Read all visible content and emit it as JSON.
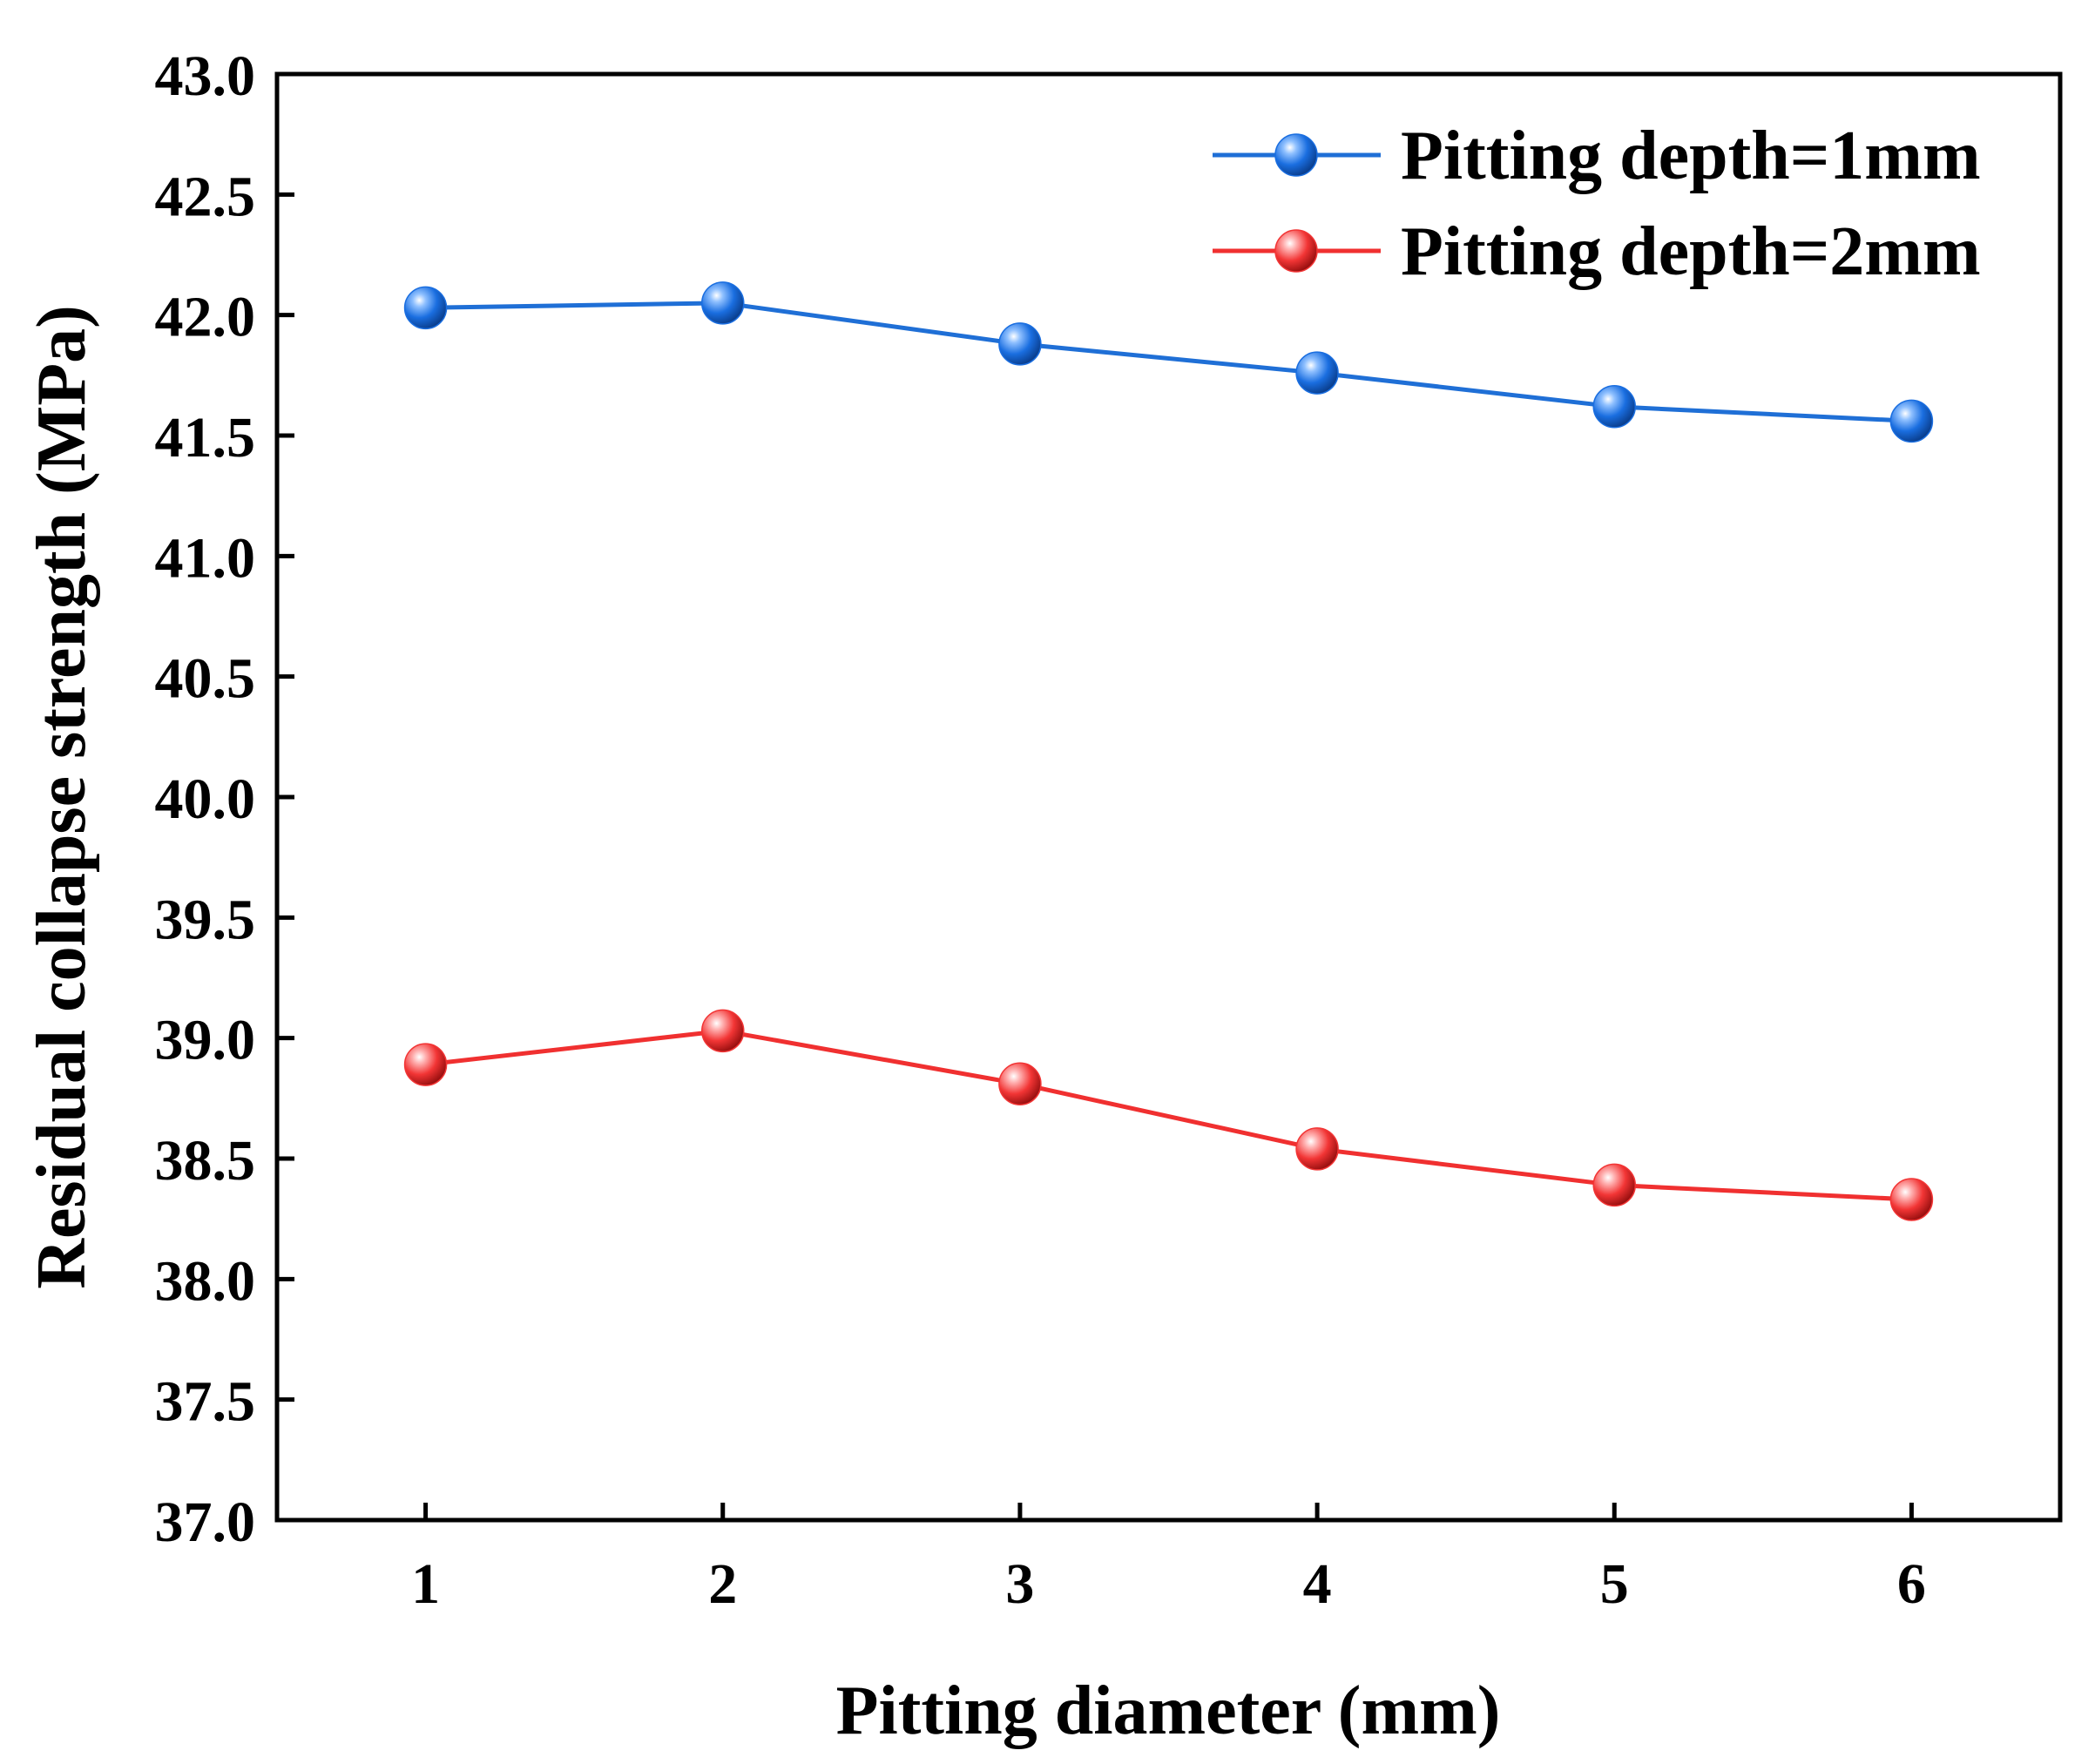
{
  "chart_data": {
    "type": "line",
    "title": "",
    "xlabel": "Pitting diameter (mm)",
    "ylabel": "Residual collapse strength (MPa)",
    "x": [
      1,
      2,
      3,
      4,
      5,
      6
    ],
    "x_ticks": [
      "1",
      "2",
      "3",
      "4",
      "5",
      "6"
    ],
    "xlim": [
      0.5,
      6.5
    ],
    "ylim": [
      37.0,
      43.0
    ],
    "y_ticks": [
      "37.0",
      "37.5",
      "38.0",
      "38.5",
      "39.0",
      "39.5",
      "40.0",
      "40.5",
      "41.0",
      "41.5",
      "42.0",
      "42.5",
      "43.0"
    ],
    "grid": false,
    "legend_position": "top-right",
    "series": [
      {
        "name": "Pitting depth=1mm",
        "color": "#1f6fd6",
        "marker_color": "#1a6ee0",
        "values": [
          42.03,
          42.05,
          41.88,
          41.76,
          41.62,
          41.56
        ]
      },
      {
        "name": "Pitting depth=2mm",
        "color": "#f03030",
        "marker_color": "#f23535",
        "values": [
          38.89,
          39.03,
          38.81,
          38.54,
          38.39,
          38.33
        ]
      }
    ]
  }
}
